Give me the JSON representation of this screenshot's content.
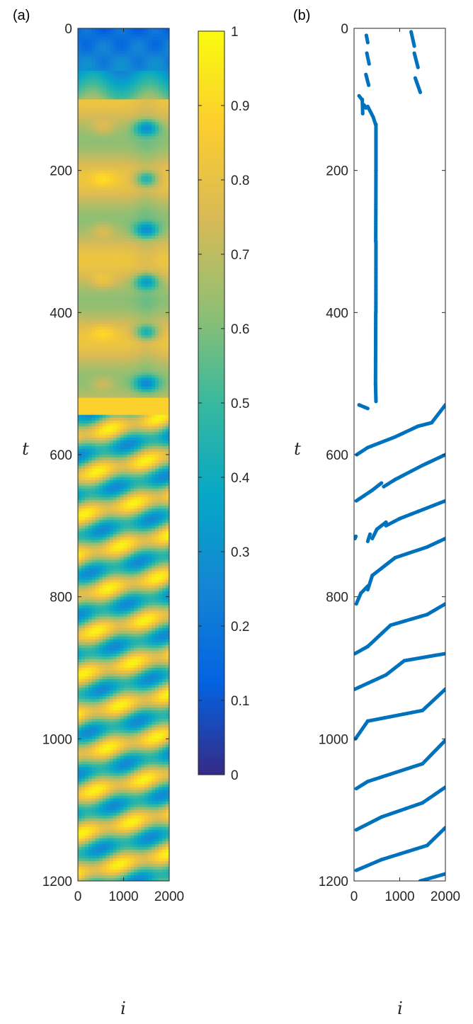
{
  "chart_data": [
    {
      "type": "heatmap",
      "panel_label": "(a)",
      "xlabel": "i",
      "ylabel": "t",
      "xlim": [
        0,
        2000
      ],
      "ylim": [
        0,
        1200
      ],
      "y_reversed": true,
      "xticks": [
        "0",
        "1000",
        "2000"
      ],
      "yticks": [
        "0",
        "200",
        "400",
        "600",
        "800",
        "1000",
        "1200"
      ],
      "colorbar": {
        "range": [
          0,
          1
        ],
        "ticks": [
          "0",
          "0.1",
          "0.2",
          "0.3",
          "0.4",
          "0.5",
          "0.6",
          "0.7",
          "0.8",
          "0.9",
          "1"
        ],
        "colormap": "parula",
        "colors": [
          "#352a87",
          "#0363e1",
          "#1485d4",
          "#06a7c6",
          "#38b99e",
          "#92bf73",
          "#d9ba56",
          "#fcce2e",
          "#f9fb0e"
        ]
      },
      "regions": [
        {
          "t_range": [
            0,
            100
          ],
          "description": "low values ~0.1-0.4"
        },
        {
          "t_range": [
            100,
            520
          ],
          "description": "stationary pattern, high (~0.8) left, oscillating blue cells (~0.4) near i=1500"
        },
        {
          "t_range": [
            520,
            1200
          ],
          "description": "travelling diagonal stripes of high/low values"
        }
      ]
    },
    {
      "type": "scatter",
      "panel_label": "(b)",
      "xlabel": "i",
      "ylabel": "t",
      "xlim": [
        0,
        2000
      ],
      "ylim": [
        0,
        1200
      ],
      "y_reversed": true,
      "xticks": [
        "0",
        "1000",
        "2000"
      ],
      "yticks": [
        "0",
        "200",
        "400",
        "600",
        "800",
        "1000",
        "1200"
      ],
      "color": "#0072bd",
      "segments": [
        [
          [
            270,
            10
          ],
          [
            300,
            20
          ]
        ],
        [
          [
            280,
            35
          ],
          [
            330,
            50
          ]
        ],
        [
          [
            260,
            65
          ],
          [
            320,
            80
          ]
        ],
        [
          [
            1250,
            5
          ],
          [
            1320,
            25
          ]
        ],
        [
          [
            1320,
            35
          ],
          [
            1400,
            55
          ]
        ],
        [
          [
            1340,
            70
          ],
          [
            1450,
            90
          ]
        ],
        [
          [
            110,
            95
          ],
          [
            170,
            100
          ]
        ],
        [
          [
            180,
            100
          ],
          [
            190,
            120
          ]
        ],
        [
          [
            220,
            108
          ],
          [
            260,
            112
          ]
        ],
        [
          [
            300,
            110
          ],
          [
            420,
            125
          ]
        ],
        [
          [
            420,
            125
          ],
          [
            470,
            135
          ]
        ],
        [
          [
            480,
            135
          ],
          [
            480,
            200
          ]
        ],
        [
          [
            480,
            200
          ],
          [
            475,
            300
          ]
        ],
        [
          [
            480,
            300
          ],
          [
            478,
            400
          ]
        ],
        [
          [
            475,
            400
          ],
          [
            470,
            500
          ]
        ],
        [
          [
            470,
            500
          ],
          [
            480,
            525
          ]
        ],
        [
          [
            110,
            530
          ],
          [
            300,
            535
          ]
        ],
        [
          [
            60,
            600
          ],
          [
            300,
            590
          ]
        ],
        [
          [
            300,
            590
          ],
          [
            900,
            575
          ]
        ],
        [
          [
            900,
            575
          ],
          [
            1400,
            560
          ]
        ],
        [
          [
            1400,
            560
          ],
          [
            1700,
            555
          ]
        ],
        [
          [
            1700,
            555
          ],
          [
            2000,
            530
          ]
        ],
        [
          [
            50,
            665
          ],
          [
            400,
            650
          ]
        ],
        [
          [
            400,
            650
          ],
          [
            600,
            640
          ]
        ],
        [
          [
            650,
            645
          ],
          [
            900,
            635
          ]
        ],
        [
          [
            900,
            635
          ],
          [
            1500,
            615
          ]
        ],
        [
          [
            1500,
            615
          ],
          [
            2000,
            600
          ]
        ],
        [
          [
            20,
            718
          ],
          [
            40,
            715
          ]
        ],
        [
          [
            300,
            722
          ],
          [
            350,
            712
          ]
        ],
        [
          [
            400,
            718
          ],
          [
            500,
            705
          ]
        ],
        [
          [
            500,
            705
          ],
          [
            700,
            695
          ]
        ],
        [
          [
            700,
            700
          ],
          [
            1000,
            690
          ]
        ],
        [
          [
            1000,
            690
          ],
          [
            1400,
            680
          ]
        ],
        [
          [
            1400,
            680
          ],
          [
            2000,
            665
          ]
        ],
        [
          [
            50,
            810
          ],
          [
            150,
            795
          ]
        ],
        [
          [
            150,
            795
          ],
          [
            300,
            785
          ]
        ],
        [
          [
            300,
            790
          ],
          [
            400,
            770
          ]
        ],
        [
          [
            400,
            770
          ],
          [
            600,
            760
          ]
        ],
        [
          [
            600,
            760
          ],
          [
            900,
            745
          ]
        ],
        [
          [
            900,
            745
          ],
          [
            1600,
            730
          ]
        ],
        [
          [
            1600,
            730
          ],
          [
            2000,
            718
          ]
        ],
        [
          [
            20,
            880
          ],
          [
            300,
            870
          ]
        ],
        [
          [
            300,
            870
          ],
          [
            800,
            840
          ]
        ],
        [
          [
            800,
            840
          ],
          [
            1600,
            825
          ]
        ],
        [
          [
            1600,
            825
          ],
          [
            2000,
            810
          ]
        ],
        [
          [
            20,
            930
          ],
          [
            700,
            910
          ]
        ],
        [
          [
            700,
            910
          ],
          [
            1100,
            890
          ]
        ],
        [
          [
            1100,
            890
          ],
          [
            2000,
            880
          ]
        ],
        [
          [
            30,
            1000
          ],
          [
            300,
            975
          ]
        ],
        [
          [
            300,
            975
          ],
          [
            1500,
            960
          ]
        ],
        [
          [
            1500,
            960
          ],
          [
            2000,
            930
          ]
        ],
        [
          [
            50,
            1070
          ],
          [
            300,
            1060
          ]
        ],
        [
          [
            300,
            1060
          ],
          [
            1500,
            1035
          ]
        ],
        [
          [
            1500,
            1035
          ],
          [
            2000,
            1002
          ]
        ],
        [
          [
            50,
            1128
          ],
          [
            600,
            1110
          ]
        ],
        [
          [
            600,
            1110
          ],
          [
            1500,
            1090
          ]
        ],
        [
          [
            1500,
            1090
          ],
          [
            2000,
            1068
          ]
        ],
        [
          [
            50,
            1185
          ],
          [
            600,
            1170
          ]
        ],
        [
          [
            600,
            1170
          ],
          [
            1600,
            1150
          ]
        ],
        [
          [
            1600,
            1150
          ],
          [
            2000,
            1125
          ]
        ],
        [
          [
            1450,
            1200
          ],
          [
            2000,
            1190
          ]
        ]
      ]
    }
  ]
}
